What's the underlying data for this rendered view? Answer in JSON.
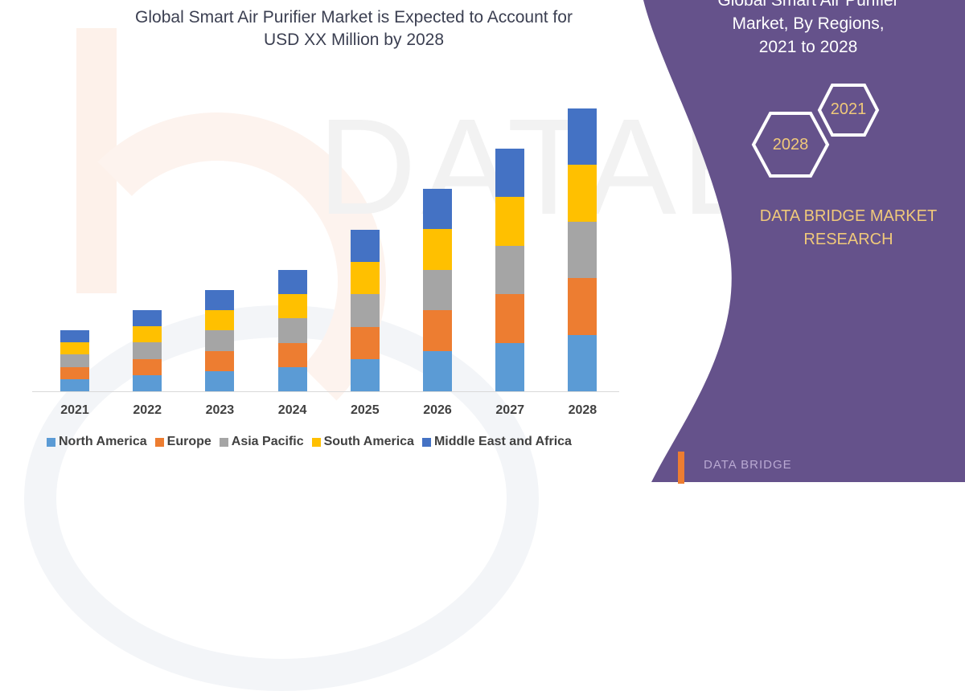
{
  "chart_data": {
    "type": "bar",
    "stacked": true,
    "title": "Global Smart Air Purifier Market is Expected to Account for USD XX Million by 2028",
    "xlabel": "",
    "ylabel": "",
    "grid": false,
    "legend_position": "bottom",
    "categories": [
      "2021",
      "2022",
      "2023",
      "2024",
      "2025",
      "2026",
      "2027",
      "2028"
    ],
    "series": [
      {
        "name": "North America",
        "color": "#5b9bd5",
        "values": [
          15.2,
          20.2,
          25.2,
          30.2,
          40.2,
          50.4,
          60.4,
          70.4
        ]
      },
      {
        "name": "Europe",
        "color": "#ed7d31",
        "values": [
          15.2,
          20.2,
          25.2,
          30.2,
          40.2,
          50.4,
          60.4,
          70.4
        ]
      },
      {
        "name": "Asia Pacific",
        "color": "#a5a5a5",
        "values": [
          15.2,
          20.2,
          25.2,
          30.2,
          40.2,
          50.4,
          60.4,
          70.4
        ]
      },
      {
        "name": "South America",
        "color": "#ffc000",
        "values": [
          15.2,
          20.2,
          25.2,
          30.2,
          40.2,
          50.4,
          60.4,
          70.4
        ]
      },
      {
        "name": "Middle East and Africa",
        "color": "#4472c4",
        "values": [
          15.2,
          20.2,
          25.2,
          30.2,
          40.2,
          50.4,
          60.4,
          70.4
        ]
      }
    ],
    "note": "No y-axis shown; values are relative bar heights (px) per segment"
  },
  "title_line1": "Global Smart Air Purifier Market is Expected to Account for",
  "title_line2": "USD XX Million by 2028",
  "side_panel": {
    "title_line1": "Global Smart Air Purifier",
    "title_line2": "Market, By Regions,",
    "title_line3": "2021 to 2028",
    "hex_start": "2021",
    "hex_end": "2028",
    "brand_line1": "DATA BRIDGE MARKET",
    "brand_line2": "RESEARCH",
    "logo_text": "DATA BRIDGE",
    "background": "#65528b",
    "accent": "#f0c97a"
  },
  "watermark": "DATABRIDGE"
}
